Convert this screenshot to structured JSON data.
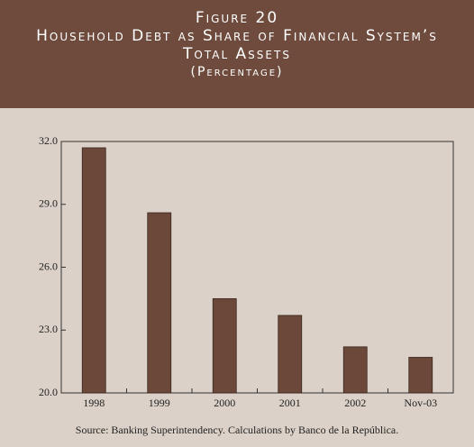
{
  "chart_data": {
    "type": "bar",
    "figure_label": "Figure 20",
    "title": "Household Debt as Share of Financial System’s Total Assets",
    "subtitle": "(Percentage)",
    "categories": [
      "1998",
      "1999",
      "2000",
      "2001",
      "2002",
      "Nov-03"
    ],
    "values": [
      31.7,
      28.6,
      24.5,
      23.7,
      22.2,
      21.7
    ],
    "color": "#6b4839",
    "ylim": [
      20,
      32
    ],
    "yticks": [
      {
        "value": 20,
        "label": "20.0"
      },
      {
        "value": 23,
        "label": "23.0"
      },
      {
        "value": 26,
        "label": "26.0"
      },
      {
        "value": 29,
        "label": "29.0"
      },
      {
        "value": 32,
        "label": "32.0"
      }
    ],
    "source": "Source: Banking Superintendency.  Calculations by Banco de la República."
  }
}
